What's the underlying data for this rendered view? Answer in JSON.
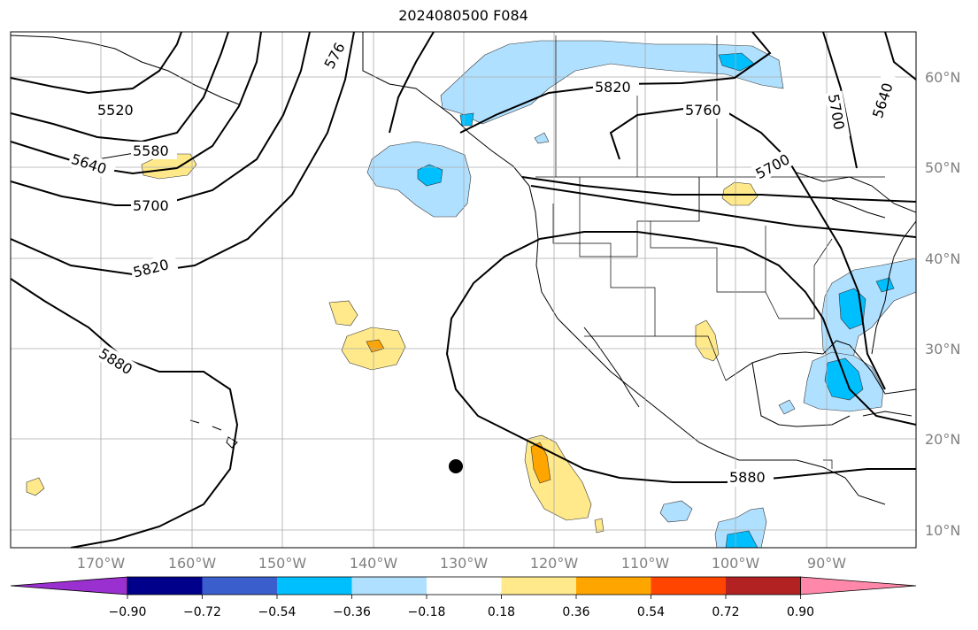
{
  "title": "2024080500 F084",
  "lat_labels": [
    "60°N",
    "50°N",
    "40°N",
    "30°N",
    "20°N",
    "10°N"
  ],
  "lon_labels": [
    "170°W",
    "160°W",
    "150°W",
    "140°W",
    "130°W",
    "120°W",
    "110°W",
    "100°W",
    "90°W"
  ],
  "contour_labels": [
    "5520",
    "5580",
    "5640",
    "5700",
    "5820",
    "5880",
    "576",
    "5820",
    "5760",
    "5700",
    "5640",
    "5700",
    "5880"
  ],
  "colorbar": {
    "ticks": [
      "−0.90",
      "−0.72",
      "−0.54",
      "−0.36",
      "−0.18",
      "0.18",
      "0.36",
      "0.54",
      "0.72",
      "0.90"
    ],
    "colors": [
      "#9b30d0",
      "#00008b",
      "#3a5fcd",
      "#00bfff",
      "#b0e0ff",
      "#ffffff",
      "#ffe98a",
      "#ffa500",
      "#ff4500",
      "#b22222",
      "#ff88aa"
    ]
  }
}
